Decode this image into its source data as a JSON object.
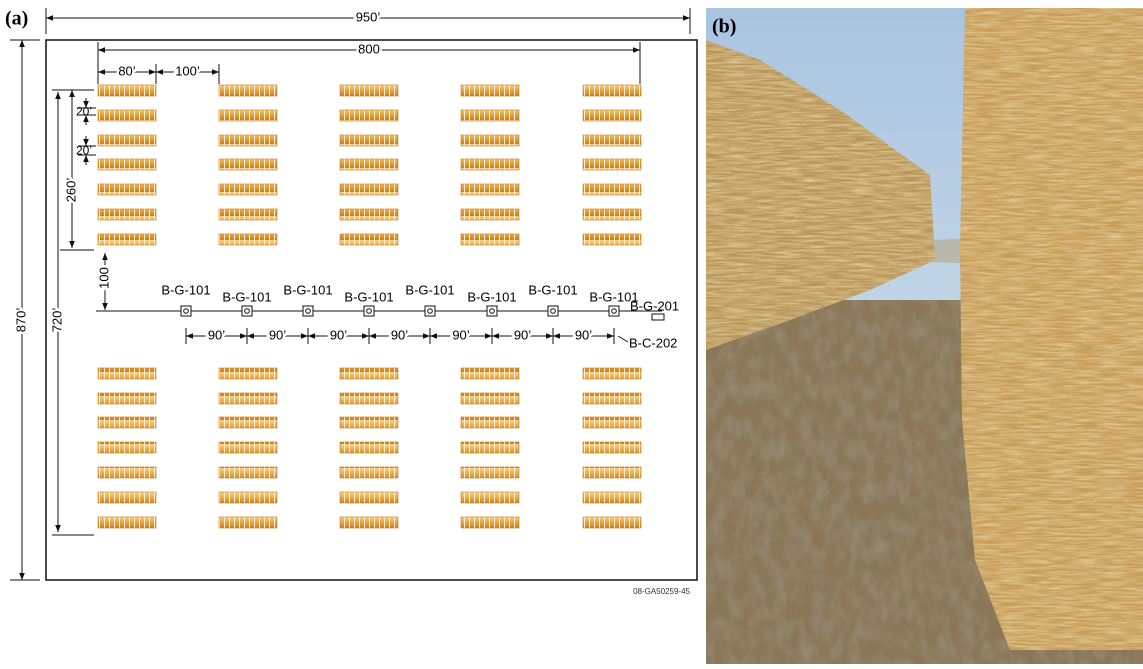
{
  "panel_a": {
    "label": "(a)",
    "dimensions": {
      "overall_width": "950’",
      "field_width": "800",
      "stack_width": "80’",
      "stack_gap": "100’",
      "row_gap_1": "20’",
      "row_gap_2": "20’",
      "block_depth": "260’",
      "pipe_offset": "100",
      "pipe_span": "720’",
      "overall_height": "870’"
    },
    "sensors": [
      "B-G-101",
      "B-G-101",
      "B-G-101",
      "B-G-101",
      "B-G-101",
      "B-G-101",
      "B-G-101",
      "B-G-101"
    ],
    "end_sensor": "B-G-201",
    "controller": "B-C-202",
    "spacings": [
      "90’",
      "90’",
      "90’",
      "90’",
      "90’",
      "90’",
      "90’"
    ],
    "figure_code": "08-GA50259-45"
  },
  "panel_b": {
    "label": "(b)"
  }
}
